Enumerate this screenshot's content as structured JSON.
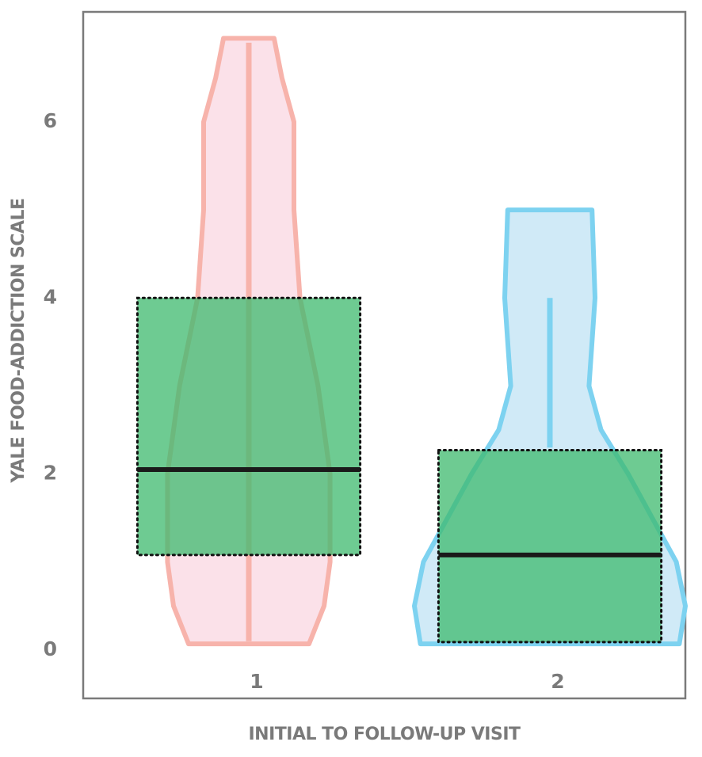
{
  "chart_data": {
    "type": "violin",
    "xlabel": "INITIAL TO FOLLOW-UP VISIT",
    "ylabel": "YALE FOOD-ADDICTION SCALE",
    "x": [
      1,
      2
    ],
    "xlim": [
      0.45,
      2.45
    ],
    "xticks": [
      1,
      2
    ],
    "ylim": [
      -0.55,
      7.25
    ],
    "yticks": [
      0,
      2,
      4,
      6
    ],
    "box_width": 0.74,
    "box_color": "#3dba6e",
    "series": [
      {
        "color": "#f7b3ab",
        "fill": "#fbe1e9",
        "violin_y": [
          0.07,
          0.5,
          1,
          2,
          3,
          4,
          5,
          6,
          6.5,
          6.95
        ],
        "violin_half_width": [
          0.2,
          0.25,
          0.27,
          0.27,
          0.23,
          0.17,
          0.15,
          0.15,
          0.11,
          0.084
        ],
        "whisker": [
          0.1,
          6.9
        ],
        "q1": 1.08,
        "median": 2.05,
        "q3": 4.0
      },
      {
        "color": "#7dd2f0",
        "fill": "#d0eaf7",
        "violin_y": [
          0.07,
          0.5,
          1,
          1.5,
          2,
          2.5,
          3,
          4,
          4.5,
          5.0
        ],
        "violin_half_width": [
          0.43,
          0.45,
          0.42,
          0.34,
          0.26,
          0.17,
          0.13,
          0.15,
          0.145,
          0.14
        ],
        "whisker": [
          2.3,
          4.0
        ],
        "q1": 0.09,
        "median": 1.08,
        "q3": 2.27
      }
    ]
  }
}
